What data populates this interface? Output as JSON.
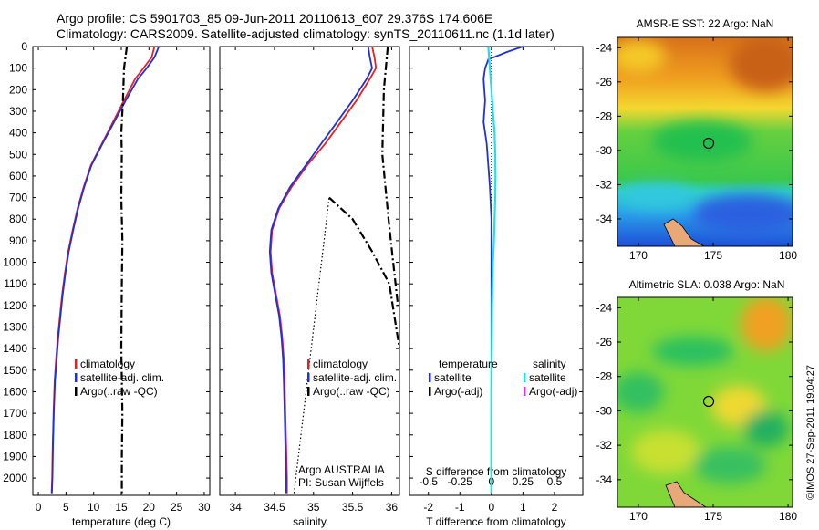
{
  "header": {
    "line1": "Argo profile: CS 5901703_85 09-Jun-2011 20110613_607 29.376S 174.606E",
    "line2": "Climatology: CARS2009. Satellite-adjusted climatology: synTS_20110611.nc (1.1d later)"
  },
  "credit": "©IMOS 27-Sep-2011 19:04:27",
  "depth_ticks": [
    "0",
    "100",
    "200",
    "300",
    "400",
    "500",
    "600",
    "700",
    "800",
    "900",
    "1000",
    "1100",
    "1200",
    "1300",
    "1400",
    "1500",
    "1600",
    "1700",
    "1800",
    "1900",
    "2000"
  ],
  "colors": {
    "climatology": "#e8201f",
    "satellite": "#1f2fe0",
    "argo": "#000000",
    "sat_sal": "#22e0ea",
    "argo_sal": "#d43be0",
    "map_frame": "#000000"
  },
  "temperature_panel": {
    "xlabel": "temperature (deg C)",
    "xticks": [
      "0",
      "5",
      "10",
      "15",
      "20",
      "25",
      "30"
    ],
    "legend": [
      "climatology",
      "satellite-adj. clim.",
      "Argo(..raw -QC)"
    ]
  },
  "salinity_panel": {
    "xlabel": "salinity",
    "xticks": [
      "34",
      "34.5",
      "35",
      "35.5",
      "36"
    ],
    "legend": [
      "climatology",
      "satellite-adj. clim.",
      "Argo(..raw -QC)"
    ],
    "note1": "Argo AUSTRALIA",
    "note2": "PI: Susan Wijffels"
  },
  "difference_panel": {
    "xlabel": "T difference from climatology",
    "top_label": "S difference from climatology",
    "top_ticks": [
      "-0.5",
      "-0.25",
      "0",
      "0.25",
      "0.5"
    ],
    "bottom_ticks": [
      "-2",
      "-1",
      "0",
      "1",
      "2"
    ],
    "legend_temp_title": "temperature",
    "legend_sal_title": "salinity",
    "legend_temp": [
      "satellite",
      "Argo(-adj)"
    ],
    "legend_sal": [
      "satellite",
      "Argo(-adj)"
    ]
  },
  "map_top": {
    "title": "AMSR-E SST: 22 Argo: NaN",
    "yticks": [
      "-24",
      "-26",
      "-28",
      "-30",
      "-32",
      "-34"
    ],
    "xticks": [
      "170",
      "175",
      "180"
    ]
  },
  "map_bottom": {
    "title": "Altimetric SLA: 0.038 Argo: NaN",
    "yticks": [
      "-24",
      "-26",
      "-28",
      "-30",
      "-32",
      "-34"
    ],
    "xticks": [
      "170",
      "175",
      "180"
    ]
  },
  "chart_data": [
    {
      "type": "line",
      "xlabel": "temperature (deg C)",
      "ylabel": "",
      "xlim": [
        -1,
        31
      ],
      "ylim": [
        0,
        2080
      ],
      "y_reversed": true,
      "series": [
        {
          "name": "climatology",
          "x": [
            21.0,
            20.5,
            19.0,
            17.5,
            15.5,
            13.5,
            11.5,
            9.5,
            8.2,
            7.1,
            6.2,
            5.4,
            4.8,
            4.3,
            3.9,
            3.5,
            3.2,
            2.95,
            2.75,
            2.6,
            2.5,
            2.4
          ],
          "y": [
            0,
            50,
            100,
            150,
            250,
            350,
            450,
            550,
            650,
            750,
            850,
            950,
            1050,
            1150,
            1250,
            1350,
            1450,
            1550,
            1700,
            1850,
            2000,
            2070
          ]
        },
        {
          "name": "satellite-adj. clim.",
          "x": [
            21.8,
            21.0,
            19.6,
            18.0,
            15.8,
            13.7,
            11.6,
            9.6,
            8.3,
            7.2,
            6.3,
            5.5,
            4.9,
            4.4,
            4.0,
            3.6,
            3.3,
            3.0,
            2.8,
            2.65,
            2.55,
            2.45
          ],
          "y": [
            0,
            50,
            100,
            150,
            250,
            350,
            450,
            550,
            650,
            750,
            850,
            950,
            1050,
            1150,
            1250,
            1350,
            1450,
            1550,
            1700,
            1850,
            2000,
            2070
          ]
        },
        {
          "name": "Argo(..raw -QC)",
          "x": [
            16.0,
            15.5,
            15.3,
            15.0,
            15.1,
            15.0,
            15.2,
            15.1,
            15.0,
            15.2,
            15.1,
            15.1
          ],
          "y": [
            0,
            100,
            250,
            400,
            500,
            700,
            900,
            1100,
            1400,
            1700,
            1900,
            2070
          ]
        }
      ]
    },
    {
      "type": "line",
      "xlabel": "salinity",
      "ylabel": "",
      "xlim": [
        33.8,
        36.1
      ],
      "ylim": [
        0,
        2080
      ],
      "y_reversed": true,
      "series": [
        {
          "name": "climatology",
          "x": [
            35.75,
            35.78,
            35.8,
            35.72,
            35.55,
            35.35,
            35.15,
            34.92,
            34.72,
            34.56,
            34.47,
            34.45,
            34.47,
            34.52,
            34.57,
            34.6,
            34.62,
            34.63,
            34.64,
            34.65,
            34.66,
            34.66
          ],
          "y": [
            0,
            50,
            100,
            150,
            250,
            350,
            450,
            550,
            650,
            750,
            850,
            950,
            1050,
            1150,
            1250,
            1350,
            1450,
            1550,
            1700,
            1850,
            2000,
            2070
          ]
        },
        {
          "name": "satellite-adj. clim.",
          "x": [
            35.7,
            35.72,
            35.75,
            35.68,
            35.5,
            35.3,
            35.1,
            34.9,
            34.7,
            34.55,
            34.46,
            34.44,
            34.46,
            34.51,
            34.56,
            34.59,
            34.61,
            34.62,
            34.63,
            34.64,
            34.65,
            34.65
          ],
          "y": [
            0,
            50,
            100,
            150,
            250,
            350,
            450,
            550,
            650,
            750,
            850,
            950,
            1050,
            1150,
            1250,
            1350,
            1450,
            1550,
            1700,
            1850,
            2000,
            2070
          ]
        },
        {
          "name": "Argo(..raw -QC)",
          "x": [
            35.95,
            35.9,
            35.88,
            35.96,
            36.02,
            36.08
          ],
          "y": [
            0,
            200,
            500,
            800,
            1000,
            1200
          ]
        },
        {
          "name": "Argo(..raw -QC)",
          "x": [
            35.2,
            35.5,
            35.75,
            35.97,
            36.1
          ],
          "y": [
            700,
            800,
            950,
            1100,
            1400
          ]
        },
        {
          "name": "Argo(..raw -QC)",
          "x": [
            34.75,
            35.2
          ],
          "y": [
            2070,
            700
          ]
        }
      ]
    },
    {
      "type": "line",
      "xlabel": "T difference from climatology",
      "ylabel": "",
      "xlim": [
        -2.6,
        2.9
      ],
      "ylim": [
        0,
        2080
      ],
      "y_reversed": true,
      "series": [
        {
          "name": "satellite",
          "x": [
            1.0,
            0.5,
            -0.1,
            -0.2,
            -0.25,
            -0.2,
            -0.25,
            -0.15,
            -0.1,
            -0.05,
            0.0,
            0.0,
            0.0,
            0.0,
            0.0,
            0.0,
            0.0,
            0.0,
            0.0,
            0.0
          ],
          "y": [
            0,
            25,
            60,
            100,
            150,
            250,
            350,
            450,
            550,
            650,
            800,
            950,
            1100,
            1250,
            1400,
            1550,
            1700,
            1850,
            2000,
            2070
          ]
        },
        {
          "name": "satellite",
          "x": [
            -0.1,
            -0.05,
            0.0,
            0.05,
            0.1,
            0.12,
            0.13,
            0.12,
            0.1,
            0.08,
            0.05,
            0.03,
            0.02,
            0.01,
            0.0,
            0.0,
            0.0
          ],
          "y": [
            0,
            100,
            200,
            300,
            400,
            500,
            600,
            700,
            800,
            900,
            1000,
            1100,
            1200,
            1400,
            1600,
            1800,
            2070
          ]
        }
      ]
    }
  ]
}
